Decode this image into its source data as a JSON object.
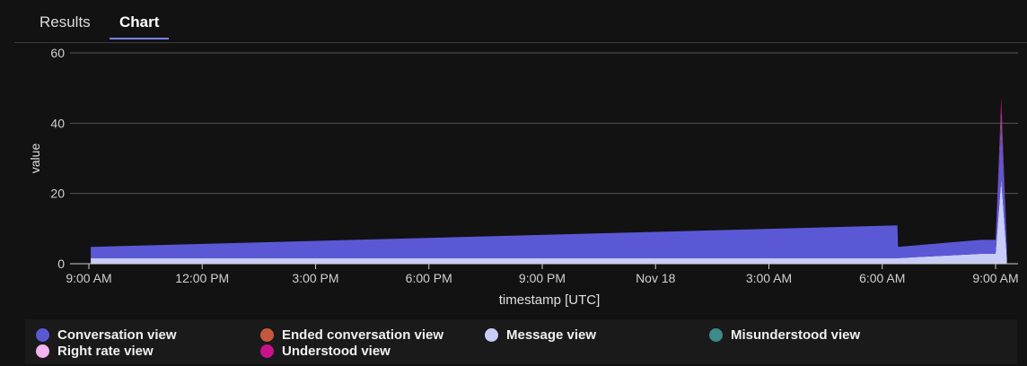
{
  "tabs": [
    {
      "label": "Results",
      "active": false
    },
    {
      "label": "Chart",
      "active": true
    }
  ],
  "chart_data": {
    "type": "area",
    "stacked": true,
    "title": "",
    "xlabel": "timestamp [UTC]",
    "ylabel": "value",
    "ylim": [
      0,
      60
    ],
    "y_ticks": [
      0,
      20,
      40,
      60
    ],
    "x_ticks": [
      "9:00 AM",
      "12:00 PM",
      "3:00 PM",
      "6:00 PM",
      "9:00 PM",
      "Nov 18",
      "3:00 AM",
      "6:00 AM",
      "9:00 AM"
    ],
    "x_tick_hours": [
      0,
      3,
      6,
      9,
      12,
      15,
      18,
      21,
      24
    ],
    "x_start_hour": 0.05,
    "x_end_hour": 24.3,
    "grid": true,
    "legend_position": "bottom",
    "series": [
      {
        "name": "Message view",
        "color": "#c8cdf7",
        "points": [
          [
            0.05,
            1.6
          ],
          [
            23.6,
            1.6
          ],
          [
            23.6,
            2.8
          ],
          [
            24.0,
            2.8
          ],
          [
            24.15,
            24.0
          ],
          [
            24.3,
            1.6
          ]
        ]
      },
      {
        "name": "Conversation view",
        "color": "#5b58d6",
        "points": [
          [
            0.05,
            3.2
          ],
          [
            21.4,
            3.2
          ],
          [
            21.4,
            9.3
          ],
          [
            21.42,
            3.2
          ],
          [
            23.6,
            3.2
          ],
          [
            23.6,
            4.0
          ],
          [
            24.0,
            4.0
          ],
          [
            24.15,
            16.0
          ],
          [
            24.3,
            3.2
          ]
        ]
      },
      {
        "name": "Ended conversation view",
        "color": "#c4583f",
        "points": [
          [
            0.05,
            0
          ],
          [
            24.0,
            0
          ],
          [
            24.15,
            1.0
          ],
          [
            24.3,
            0
          ]
        ]
      },
      {
        "name": "Misunderstood view",
        "color": "#3f8a8a",
        "points": [
          [
            0.05,
            0
          ],
          [
            24.0,
            0
          ],
          [
            24.15,
            1.5
          ],
          [
            24.3,
            0
          ]
        ]
      },
      {
        "name": "Right rate view",
        "color": "#f3b4ef",
        "points": [
          [
            0.05,
            0
          ],
          [
            24.0,
            0
          ],
          [
            24.15,
            0.8
          ],
          [
            24.3,
            0
          ]
        ]
      },
      {
        "name": "Understood view",
        "color": "#c8128c",
        "points": [
          [
            0.05,
            0
          ],
          [
            24.0,
            0
          ],
          [
            24.15,
            4.0
          ],
          [
            24.3,
            0
          ]
        ]
      }
    ]
  },
  "legend": [
    {
      "label": "Conversation view",
      "color": "#5b58d6"
    },
    {
      "label": "Ended conversation view",
      "color": "#c4583f"
    },
    {
      "label": "Message view",
      "color": "#c8cdf7"
    },
    {
      "label": "Misunderstood view",
      "color": "#3f8a8a"
    },
    {
      "label": "Right rate view",
      "color": "#f3b4ef"
    },
    {
      "label": "Understood view",
      "color": "#c8128c"
    }
  ]
}
